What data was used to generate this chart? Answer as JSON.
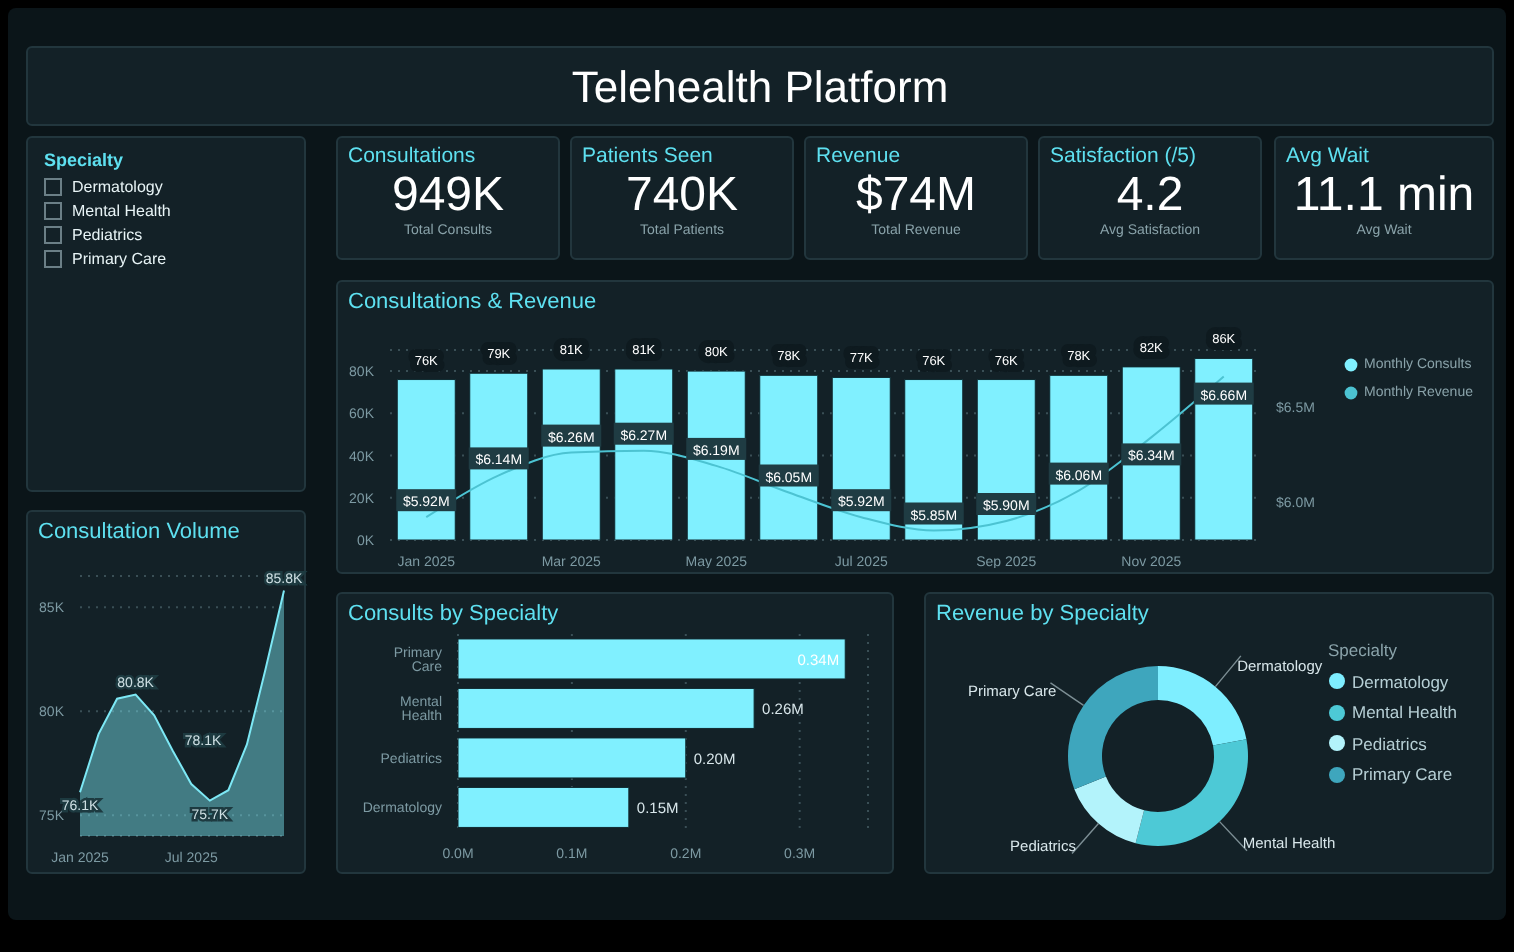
{
  "chart_data": [
    {
      "type": "other",
      "title": "Telehealth Platform"
    },
    {
      "type": "other",
      "title": "Specialty",
      "annotations": [
        "Dermatology",
        "Mental Health",
        "Pediatrics",
        "Primary Care"
      ]
    },
    {
      "type": "other",
      "title": "Consultations",
      "annotations": [
        "949K",
        "Total Consults"
      ]
    },
    {
      "type": "other",
      "title": "Patients Seen",
      "annotations": [
        "740K",
        "Total Patients"
      ]
    },
    {
      "type": "other",
      "title": "Revenue",
      "annotations": [
        "$74M",
        "Total Revenue"
      ]
    },
    {
      "type": "other",
      "title": "Satisfaction (/5)",
      "annotations": [
        "4.2",
        "Avg Satisfaction"
      ]
    },
    {
      "type": "other",
      "title": "Avg Wait",
      "annotations": [
        "11.1 min",
        "Avg Wait"
      ]
    },
    {
      "type": "bar",
      "title": "Consultations & Revenue",
      "categories": [
        "Jan 2025",
        null,
        "Mar 2025",
        null,
        "May 2025",
        null,
        "Jul 2025",
        null,
        "Sep 2025",
        null,
        "Nov 2025",
        null
      ],
      "series": [
        {
          "name": "Monthly Consults",
          "type": "bar",
          "color": "#80f0ff",
          "values": [
            76000,
            79000,
            81000,
            81000,
            80000,
            78000,
            77000,
            76000,
            76000,
            78000,
            82000,
            86000
          ],
          "value_labels": [
            "76K",
            "79K",
            "81K",
            "81K",
            "80K",
            "78K",
            "77K",
            "76K",
            "76K",
            "78K",
            "82K",
            "86K"
          ]
        },
        {
          "name": "Monthly Revenue",
          "type": "line",
          "axis": "y2",
          "color": "#4cc3d2",
          "values": [
            5920000,
            6140000,
            6260000,
            6270000,
            6190000,
            6050000,
            5920000,
            5850000,
            5900000,
            6060000,
            6340000,
            6660000
          ],
          "value_labels": [
            "$5.92M",
            "$6.14M",
            "$6.26M",
            "$6.27M",
            "$6.19M",
            "$6.05M",
            "$5.92M",
            "$5.85M",
            "$5.90M",
            "$6.06M",
            "$6.34M",
            "$6.66M"
          ]
        }
      ],
      "ylim": [
        0,
        90000
      ],
      "yticks": [
        {
          "value": 0,
          "label": "0K"
        },
        {
          "value": 20000,
          "label": "20K"
        },
        {
          "value": 40000,
          "label": "40K"
        },
        {
          "value": 60000,
          "label": "60K"
        },
        {
          "value": 80000,
          "label": "80K"
        }
      ],
      "y2lim": [
        5800000,
        6800000
      ],
      "y2ticks": [
        {
          "value": 6000000,
          "label": "$6.0M"
        },
        {
          "value": 6500000,
          "label": "$6.5M"
        }
      ],
      "grid": "y",
      "legend": "top right"
    },
    {
      "type": "area",
      "title": "Consultation Volume",
      "categories": [
        "Jan 2025",
        null,
        null,
        null,
        null,
        null,
        "Jul 2025",
        null,
        null,
        null,
        null,
        null
      ],
      "values": [
        76100,
        78900,
        80600,
        80800,
        79800,
        78100,
        76500,
        75700,
        76200,
        78400,
        82000,
        85800
      ],
      "value_labels": [
        "76.1K",
        null,
        null,
        "80.8K",
        null,
        "78.1K",
        null,
        "75.7K",
        null,
        null,
        null,
        "85.8K"
      ],
      "color": "#7de8f5",
      "ylim": [
        74000,
        86500
      ],
      "yticks": [
        {
          "value": 75000,
          "label": "75K"
        },
        {
          "value": 80000,
          "label": "80K"
        },
        {
          "value": 85000,
          "label": "85K"
        }
      ],
      "grid": "y"
    },
    {
      "type": "bar",
      "orientation": "horizontal",
      "title": "Consults by Specialty",
      "categories": [
        "Primary Care",
        "Mental Health",
        "Pediatrics",
        "Dermatology"
      ],
      "values": [
        340000,
        260000,
        200000,
        150000
      ],
      "value_labels": [
        "0.34M",
        "0.26M",
        "0.20M",
        "0.15M"
      ],
      "color": "#80f0ff",
      "xlim": [
        0,
        360000
      ],
      "xticks": [
        {
          "value": 0,
          "label": "0.0M"
        },
        {
          "value": 100000,
          "label": "0.1M"
        },
        {
          "value": 200000,
          "label": "0.2M"
        },
        {
          "value": 300000,
          "label": "0.3M"
        }
      ],
      "grid": "x"
    },
    {
      "type": "donut",
      "title": "Revenue by Specialty",
      "categories": [
        "Dermatology",
        "Mental Health",
        "Pediatrics",
        "Primary Care"
      ],
      "values": [
        22,
        32,
        15,
        31
      ],
      "colors": [
        "#7eeeff",
        "#4dc9d6",
        "#b3f3fb",
        "#3ea6bd"
      ],
      "legend": "right",
      "legend_title": "Specialty"
    }
  ]
}
